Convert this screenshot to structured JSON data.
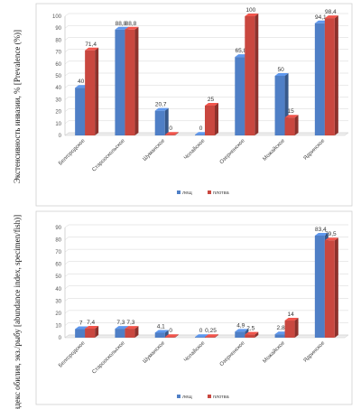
{
  "chart_data": [
    {
      "type": "bar",
      "ylabel": "Экстенсивность инвазии, % [Prevalence (%)]",
      "ylim": [
        0,
        100
      ],
      "yticks": [
        0,
        10,
        20,
        30,
        40,
        50,
        60,
        70,
        80,
        90,
        100
      ],
      "categories": [
        "Белгородское",
        "Старооскольское",
        "Шуманское",
        "Чолайское",
        "Озерненское",
        "Можайское",
        "Ядринское"
      ],
      "series": [
        {
          "name": "лещ",
          "color": "#4f7fc6",
          "values": [
            40,
            88.8,
            20.7,
            0,
            65.8,
            50,
            94.1
          ],
          "labels": [
            "40",
            "88,8",
            "20,7",
            "0",
            "65,8",
            "50",
            "94,1"
          ]
        },
        {
          "name": "плотва",
          "color": "#c9473f",
          "values": [
            71.4,
            88.8,
            0,
            25,
            100,
            15,
            98.4
          ],
          "labels": [
            "71,4",
            "88,8",
            "0",
            "25",
            "100",
            "15",
            "98,4"
          ]
        }
      ],
      "grid": true,
      "legend": "bottom"
    },
    {
      "type": "bar",
      "ylabel": "Индекс обилия, экз./рыбу [abundance index, specimen/fish)]",
      "ylim": [
        0,
        90
      ],
      "yticks": [
        0,
        10,
        20,
        30,
        40,
        50,
        60,
        70,
        80,
        90
      ],
      "categories": [
        "Белгородское",
        "Старооскольское",
        "Шуманское",
        "Чолайское",
        "Озерненское",
        "Можайское",
        "Ядринское"
      ],
      "series": [
        {
          "name": "лещ",
          "color": "#4f7fc6",
          "values": [
            7,
            7.3,
            4.1,
            0,
            4.9,
            2.8,
            83.4
          ],
          "labels": [
            "7",
            "7,3",
            "4,1",
            "0",
            "4,9",
            "2,8",
            "83,4"
          ]
        },
        {
          "name": "плотва",
          "color": "#c9473f",
          "values": [
            7.4,
            7.3,
            0,
            0.25,
            2.5,
            14,
            79.5
          ],
          "labels": [
            "7,4",
            "7,3",
            "0",
            "0,25",
            "2,5",
            "14",
            "79,5"
          ]
        }
      ],
      "grid": true,
      "legend": "bottom"
    }
  ]
}
